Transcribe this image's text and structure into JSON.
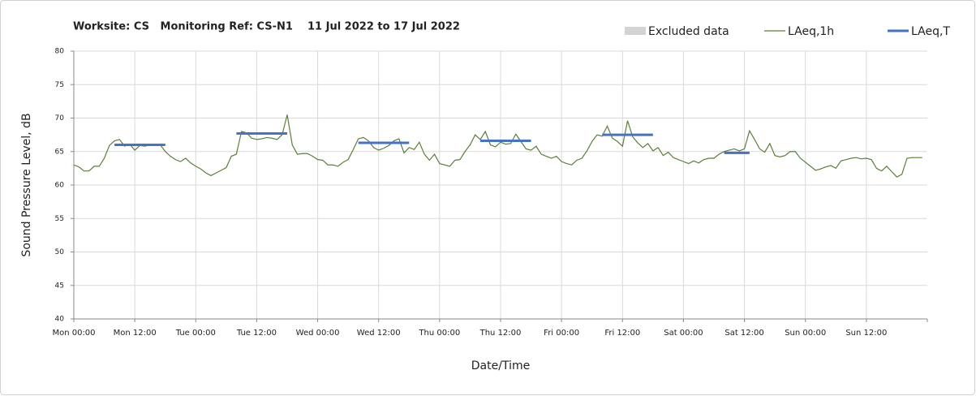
{
  "chart_data": {
    "type": "line",
    "title": "Worksite: CS   Monitoring Ref: CS-N1    11 Jul 2022 to 17 Jul 2022",
    "xlabel": "Date/Time",
    "ylabel": "Sound Pressure Level, dB",
    "xlim": [
      0,
      168
    ],
    "xticks": [
      {
        "value": 0,
        "label": "Mon 00:00"
      },
      {
        "value": 12,
        "label": "Mon 12:00"
      },
      {
        "value": 24,
        "label": "Tue 00:00"
      },
      {
        "value": 36,
        "label": "Tue 12:00"
      },
      {
        "value": 48,
        "label": "Wed 00:00"
      },
      {
        "value": 60,
        "label": "Wed 12:00"
      },
      {
        "value": 72,
        "label": "Thu 00:00"
      },
      {
        "value": 84,
        "label": "Thu 12:00"
      },
      {
        "value": 96,
        "label": "Fri 00:00"
      },
      {
        "value": 108,
        "label": "Fri 12:00"
      },
      {
        "value": 120,
        "label": "Sat 00:00"
      },
      {
        "value": 132,
        "label": "Sat 12:00"
      },
      {
        "value": 144,
        "label": "Sun 00:00"
      },
      {
        "value": 156,
        "label": "Sun 12:00"
      }
    ],
    "ylim": [
      40,
      80
    ],
    "yticks": [
      40,
      45,
      50,
      55,
      60,
      65,
      70,
      75,
      80
    ],
    "grid": true,
    "legend": "top-right",
    "series": [
      {
        "name": "Excluded data",
        "color": "#d3d3d3",
        "values": []
      },
      {
        "name": "LAeq,1h",
        "color": "#5b7f3a",
        "x": [
          0,
          1,
          2,
          3,
          4,
          5,
          6,
          7,
          8,
          9,
          10,
          11,
          12,
          13,
          14,
          15,
          16,
          17,
          18,
          19,
          20,
          21,
          22,
          23,
          24,
          25,
          26,
          27,
          28,
          29,
          30,
          31,
          32,
          33,
          34,
          35,
          36,
          37,
          38,
          39,
          40,
          41,
          42,
          43,
          44,
          45,
          46,
          47,
          48,
          49,
          50,
          51,
          52,
          53,
          54,
          55,
          56,
          57,
          58,
          59,
          60,
          61,
          62,
          63,
          64,
          65,
          66,
          67,
          68,
          69,
          70,
          71,
          72,
          73,
          74,
          75,
          76,
          77,
          78,
          79,
          80,
          81,
          82,
          83,
          84,
          85,
          86,
          87,
          88,
          89,
          90,
          91,
          92,
          93,
          94,
          95,
          96,
          97,
          98,
          99,
          100,
          101,
          102,
          103,
          104,
          105,
          106,
          107,
          108,
          109,
          110,
          111,
          112,
          113,
          114,
          115,
          116,
          117,
          118,
          119,
          120,
          121,
          122,
          123,
          124,
          125,
          126,
          127,
          128,
          129,
          130,
          131,
          132,
          133,
          134,
          135,
          136,
          137,
          138,
          139,
          140,
          141,
          142,
          143,
          144,
          145,
          146,
          147,
          148,
          149,
          150,
          151,
          152,
          153,
          154,
          155,
          156,
          157,
          158,
          159,
          160,
          161,
          162,
          163,
          164,
          165,
          166,
          167
        ],
        "values": [
          63.0,
          62.7,
          62.1,
          62.1,
          62.8,
          62.8,
          64.0,
          65.9,
          66.6,
          66.8,
          65.8,
          66.1,
          65.2,
          65.9,
          65.8,
          66.0,
          66.0,
          66.0,
          65.0,
          64.3,
          63.8,
          63.5,
          64.0,
          63.3,
          62.8,
          62.4,
          61.8,
          61.4,
          61.8,
          62.2,
          62.6,
          64.3,
          64.6,
          68.0,
          67.8,
          67.0,
          66.8,
          66.9,
          67.1,
          67.0,
          66.8,
          67.5,
          70.5,
          66.0,
          64.6,
          64.7,
          64.7,
          64.3,
          63.8,
          63.7,
          63.0,
          63.0,
          62.8,
          63.4,
          63.8,
          65.3,
          66.9,
          67.1,
          66.6,
          65.6,
          65.2,
          65.5,
          65.9,
          66.6,
          66.9,
          64.8,
          65.6,
          65.3,
          66.4,
          64.6,
          63.7,
          64.6,
          63.2,
          63.0,
          62.8,
          63.7,
          63.8,
          65.0,
          66.0,
          67.5,
          66.8,
          68.0,
          66.0,
          65.7,
          66.4,
          66.1,
          66.2,
          67.6,
          66.5,
          65.4,
          65.2,
          65.8,
          64.6,
          64.3,
          64.0,
          64.3,
          63.5,
          63.2,
          63.0,
          63.7,
          64.0,
          65.1,
          66.5,
          67.5,
          67.3,
          68.8,
          67.0,
          66.5,
          65.8,
          69.6,
          67.2,
          66.3,
          65.6,
          66.2,
          65.1,
          65.6,
          64.4,
          64.9,
          64.1,
          63.8,
          63.5,
          63.2,
          63.6,
          63.3,
          63.8,
          64.0,
          64.0,
          64.6,
          65.0,
          65.2,
          65.4,
          65.1,
          65.4,
          68.1,
          66.8,
          65.4,
          64.9,
          66.2,
          64.4,
          64.2,
          64.4,
          65.0,
          65.0,
          64.0,
          63.4,
          62.8,
          62.2,
          62.4,
          62.7,
          62.9,
          62.5,
          63.6,
          63.8,
          64.0,
          64.1,
          63.9,
          64.0,
          63.8,
          62.5,
          62.1,
          62.8,
          62.0,
          61.2,
          61.6,
          64.0,
          64.1,
          64.1,
          64.1
        ]
      },
      {
        "name": "LAeq,T",
        "color": "#4472c4",
        "x_start": [
          8,
          32,
          56,
          80,
          104,
          128
        ],
        "x_end": [
          18,
          42,
          66,
          90,
          114,
          133
        ],
        "values": [
          66.0,
          67.7,
          66.3,
          66.6,
          67.5,
          64.8
        ]
      }
    ]
  }
}
